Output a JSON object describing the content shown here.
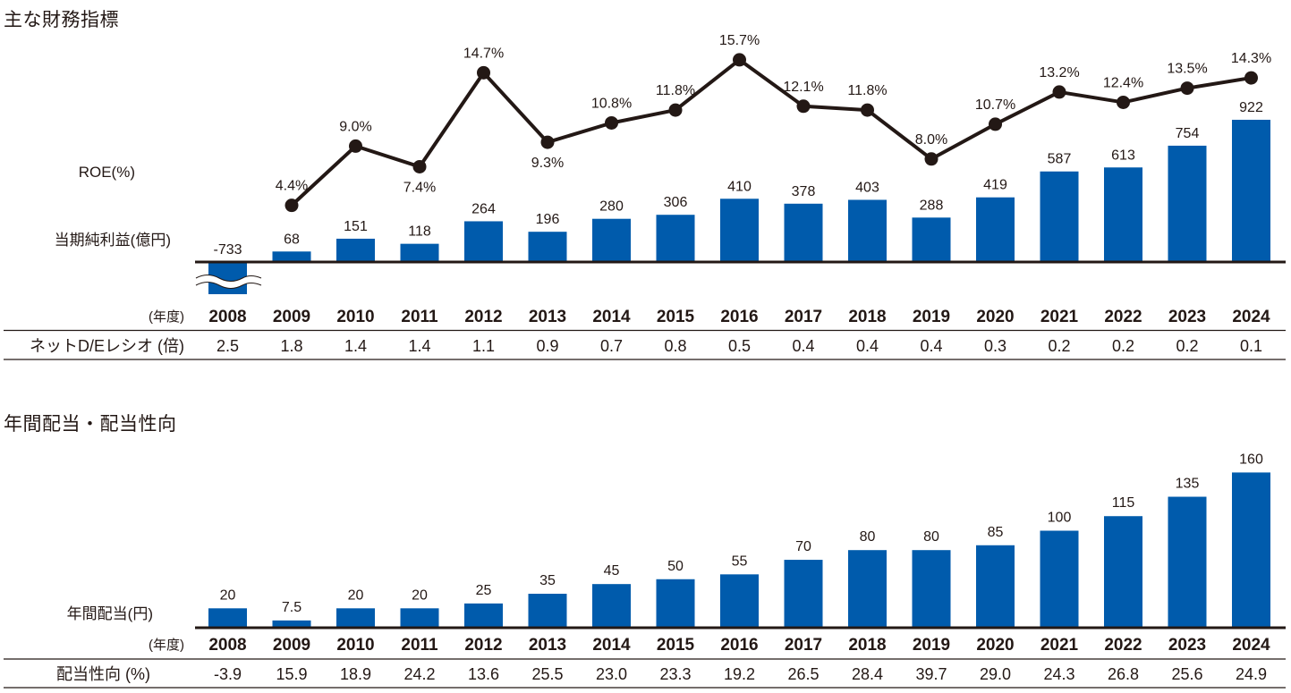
{
  "colors": {
    "bar": "#005BAC",
    "line": "#231815",
    "axis": "#231815"
  },
  "chart_data": [
    {
      "type": "bar+line",
      "title": "主な財務指標",
      "categories": [
        "2008",
        "2009",
        "2010",
        "2011",
        "2012",
        "2013",
        "2014",
        "2015",
        "2016",
        "2017",
        "2018",
        "2019",
        "2020",
        "2021",
        "2022",
        "2023",
        "2024"
      ],
      "year_unit_label": "(年度)",
      "bar_series": {
        "name": "当期純利益(億円)",
        "values": [
          -733,
          68,
          151,
          118,
          264,
          196,
          280,
          306,
          410,
          378,
          403,
          288,
          419,
          587,
          613,
          754,
          922
        ],
        "labels": [
          "-733",
          "68",
          "151",
          "118",
          "264",
          "196",
          "280",
          "306",
          "410",
          "378",
          "403",
          "288",
          "419",
          "587",
          "613",
          "754",
          "922"
        ],
        "axis_break_on_first": true
      },
      "line_series": {
        "name": "ROE(%)",
        "values": [
          null,
          4.4,
          9.0,
          7.4,
          14.7,
          9.3,
          10.8,
          11.8,
          15.7,
          12.1,
          11.8,
          8.0,
          10.7,
          13.2,
          12.4,
          13.5,
          14.3
        ],
        "labels": [
          "",
          "4.4%",
          "9.0%",
          "7.4%",
          "14.7%",
          "9.3%",
          "10.8%",
          "11.8%",
          "15.7%",
          "12.1%",
          "11.8%",
          "8.0%",
          "10.7%",
          "13.2%",
          "12.4%",
          "13.5%",
          "14.3%"
        ],
        "label_below": [
          false,
          false,
          false,
          true,
          false,
          true,
          false,
          false,
          false,
          false,
          false,
          false,
          false,
          false,
          false,
          false,
          false
        ]
      },
      "table_row": {
        "label": "ネットD/Eレシオ (倍)",
        "values": [
          "2.5",
          "1.8",
          "1.4",
          "1.4",
          "1.1",
          "0.9",
          "0.7",
          "0.8",
          "0.5",
          "0.4",
          "0.4",
          "0.4",
          "0.3",
          "0.2",
          "0.2",
          "0.2",
          "0.1"
        ]
      }
    },
    {
      "type": "bar",
      "title": "年間配当・配当性向",
      "categories": [
        "2008",
        "2009",
        "2010",
        "2011",
        "2012",
        "2013",
        "2014",
        "2015",
        "2016",
        "2017",
        "2018",
        "2019",
        "2020",
        "2021",
        "2022",
        "2023",
        "2024"
      ],
      "year_unit_label": "(年度)",
      "bar_series": {
        "name": "年間配当(円)",
        "values": [
          20,
          7.5,
          20,
          20,
          25,
          35,
          45,
          50,
          55,
          70,
          80,
          80,
          85,
          100,
          115,
          135,
          160
        ],
        "labels": [
          "20",
          "7.5",
          "20",
          "20",
          "25",
          "35",
          "45",
          "50",
          "55",
          "70",
          "80",
          "80",
          "85",
          "100",
          "115",
          "135",
          "160"
        ]
      },
      "table_row": {
        "label": "配当性向 (%)",
        "values": [
          "-3.9",
          "15.9",
          "18.9",
          "24.2",
          "13.6",
          "25.5",
          "23.0",
          "23.3",
          "19.2",
          "26.5",
          "28.4",
          "39.7",
          "29.0",
          "24.3",
          "26.8",
          "25.6",
          "24.9"
        ]
      }
    }
  ]
}
